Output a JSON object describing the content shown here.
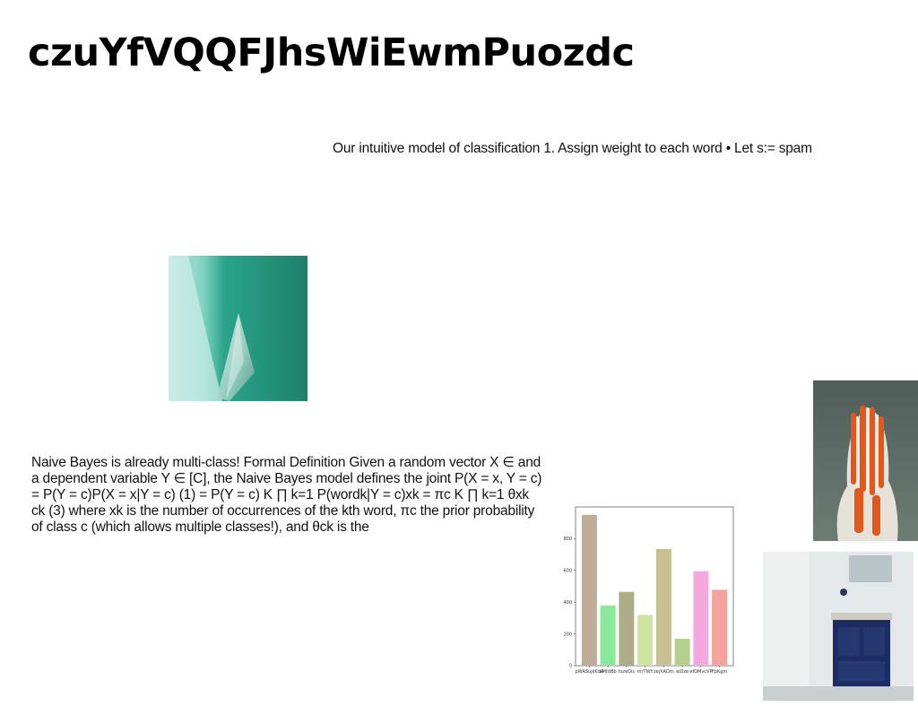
{
  "page": {
    "title": "czuYfVQQFJhsWiEwmPuozdc",
    "subtitle": "Our intuitive model of classification 1. Assign weight to each word • Let s:= spam",
    "body": "Naive Bayes is already multi-class! Formal Definition Given a random vector X ∈ and a dependent variable Y ∈ [C], the Naive Bayes model defines the joint P(X = x, Y = c) = P(Y = c)P(X = x|Y = c) (1) = P(Y = c) K ∏ k=1 P(wordk|Y = c)xk = πc K ∏ k=1 θxk ck (3) where xk is the number of occurrences of the kth word, πc the prior probability of class c (which allows multiple classes!), and θck is the"
  },
  "images": {
    "glass": "abstract-glass-shard-image",
    "figure": "sculpted-figure-image",
    "bathroom": "bathroom-vanity-image"
  },
  "chart_data": {
    "type": "bar",
    "categories": [
      "pWASujkKdA",
      "aMtdBb",
      "tszeOis",
      "mrTWY",
      "zejXADm",
      "elDze",
      "efOMvcVP",
      "FpKgm"
    ],
    "values": [
      950,
      380,
      465,
      320,
      735,
      170,
      595,
      478
    ],
    "colors": [
      "#bfad98",
      "#8ae89a",
      "#adad8a",
      "#cfe3a0",
      "#c8c091",
      "#b5d08b",
      "#f5a8dd",
      "#f4a29e"
    ],
    "yticks": [
      0,
      200,
      400,
      600,
      800
    ],
    "ylim": [
      0,
      1000
    ],
    "grid": false,
    "title": "",
    "xlabel": "",
    "ylabel": ""
  }
}
